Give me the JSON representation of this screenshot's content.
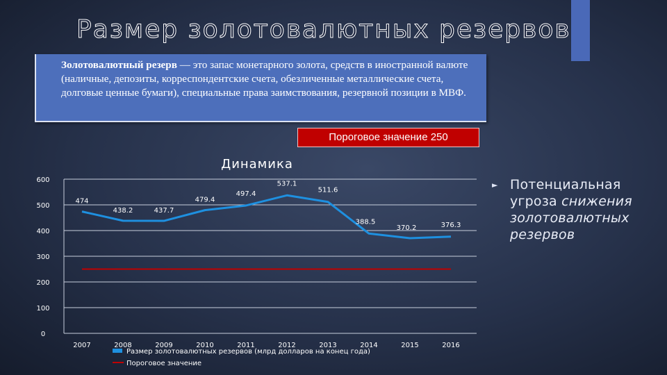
{
  "slide": {
    "title": "Размер золотовалютных резервов",
    "definition_term": "Золотовалютный резерв",
    "definition_rest": " — это запас монетарного золота, средств в иностранной валюте (наличные, депозиты, корреспондентские счета, обезличенные металлические счета, долговые ценные бумаги), специальные права заимствования, резервной позиции в МВФ.",
    "threshold_label": "Пороговое значение 250",
    "side_note_prefix": "Потенциальная угроза ",
    "side_note_italic": "снижения золотовалютных резервов",
    "colors": {
      "accent": "#4a69b8",
      "definition_bg": "#4d6fbb",
      "threshold_bg": "#c00000"
    }
  },
  "chart_data": {
    "type": "line",
    "title": "Динамика",
    "categories": [
      "2007",
      "2008",
      "2009",
      "2010",
      "2011",
      "2012",
      "2013",
      "2014",
      "2015",
      "2016"
    ],
    "yticks": [
      0,
      100,
      200,
      300,
      400,
      500,
      600
    ],
    "ylim": [
      0,
      600
    ],
    "grid": true,
    "legend_position": "bottom",
    "series": [
      {
        "name": "Размер золотовалютных резервов (млрд долларов на конец года)",
        "color": "#1e90e0",
        "values": [
          474,
          438.2,
          437.7,
          479.4,
          497.4,
          537.1,
          511.6,
          388.5,
          370.2,
          376.3
        ],
        "labels": [
          "474",
          "438.2",
          "437.7",
          "479.4",
          "497.4",
          "537.1",
          "511.6",
          "388.5",
          "370.2",
          "376.3"
        ]
      },
      {
        "name": "Пороговое значение",
        "color": "#c00000",
        "values": [
          250,
          250,
          250,
          250,
          250,
          250,
          250,
          250,
          250,
          250
        ]
      }
    ]
  }
}
